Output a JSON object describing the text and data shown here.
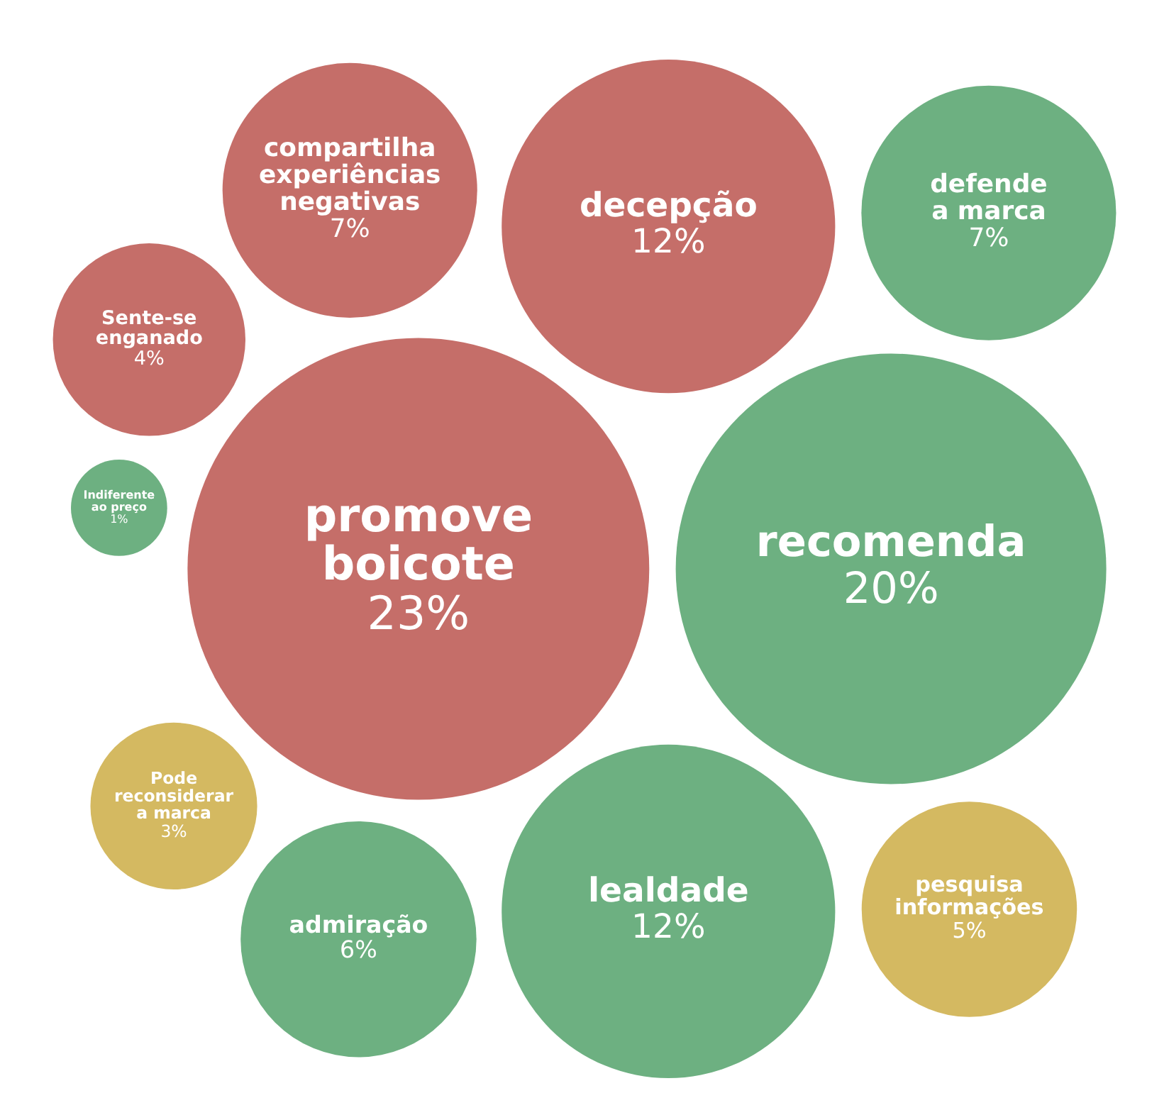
{
  "chart_data": {
    "type": "other",
    "categories": [
      "compartilha experiências negativas",
      "decepção",
      "admiração",
      "Pode reconsiderar a marca",
      "promove boicote",
      "recomenda",
      "Indiferente ao preço",
      "Sente-se enganado",
      "lealdade",
      "pesquisa informações",
      "defende a marca"
    ],
    "values": [
      7,
      12,
      6,
      3,
      23,
      20,
      1,
      4,
      12,
      5,
      7
    ],
    "value_labels": [
      "7%",
      "12%",
      "6%",
      "3%",
      "23%",
      "20%",
      "1%",
      "4%",
      "12%",
      "5%",
      "7%"
    ],
    "colors": [
      "#c56e69",
      "#c56e69",
      "#6db081",
      "#d4b961",
      "#c56e69",
      "#6db081",
      "#6db081",
      "#c56e69",
      "#6db081",
      "#d4b961",
      "#6db081"
    ]
  }
}
